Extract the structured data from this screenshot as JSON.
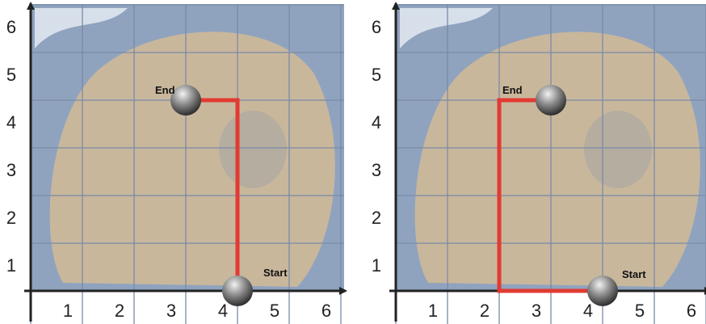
{
  "panels": [
    {
      "x_labels": [
        "1",
        "2",
        "3",
        "4",
        "5",
        "6"
      ],
      "y_labels": [
        "1",
        "2",
        "3",
        "4",
        "5",
        "6"
      ],
      "end_label": "End",
      "start_label": "Start"
    },
    {
      "x_labels": [
        "1",
        "2",
        "3",
        "4",
        "5",
        "6"
      ],
      "y_labels": [
        "1",
        "2",
        "3",
        "4",
        "5",
        "6"
      ],
      "end_label": "End",
      "start_label": "Start"
    }
  ]
}
